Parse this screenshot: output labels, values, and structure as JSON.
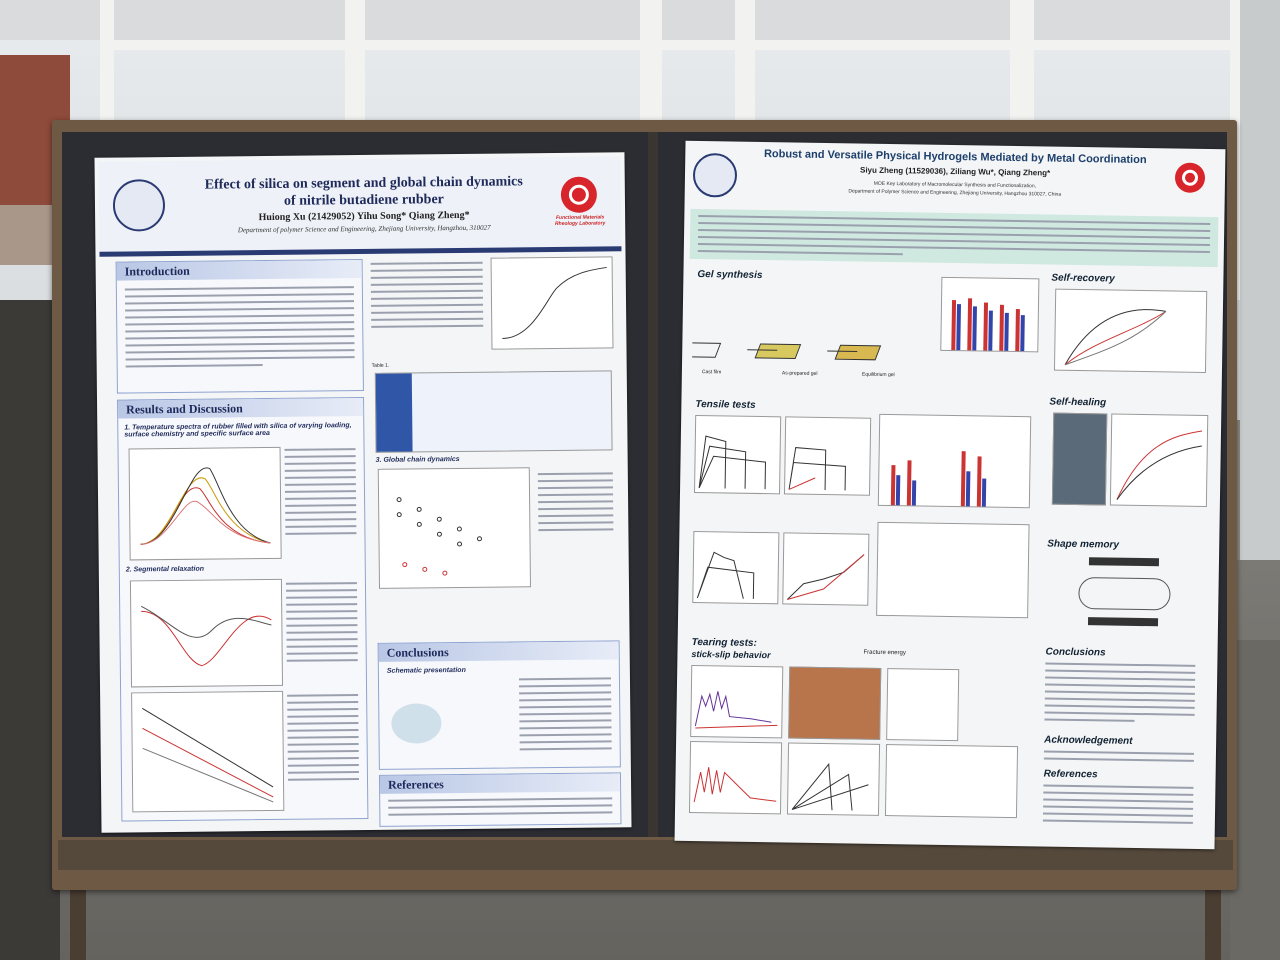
{
  "left_poster": {
    "title_line1": "Effect of silica on segment and global chain dynamics",
    "title_line2": "of nitrile butadiene rubber",
    "authors": "Huiong Xu (21429052)   Yihu Song*   Qiang Zheng*",
    "affiliation": "Department of polymer Science and Engineering, Zhejiang University, Hangzhou, 310027",
    "lab_name": "Functional Materials Rheology Laboratory",
    "introduction_heading": "Introduction",
    "results_heading": "Results and Discussion",
    "subsection1": "1. Temperature spectra of rubber filled with silica of varying loading, surface chemistry and specific surface area",
    "subsection2": "2. Segmental relaxation",
    "global_heading": "3. Global chain dynamics",
    "conclusions_heading": "Conclusions",
    "schematic_label": "Schematic presentation",
    "references_heading": "References",
    "table_label": "Table 1."
  },
  "right_poster": {
    "title": "Robust and Versatile Physical Hydrogels Mediated by Metal Coordination",
    "authors": "Siyu Zheng (11529036), Ziliang Wu*, Qiang Zheng*",
    "affiliation1": "MOE Key Laboratory of Macromolecular Synthesis and Functionalization,",
    "affiliation2": "Department of Polymer Science and Engineering, Zhejiang University, Hangzhou 310027, China",
    "gel_synthesis": "Gel synthesis",
    "self_recovery": "Self-recovery",
    "tensile_tests": "Tensile tests",
    "self_healing": "Self-healing",
    "shape_memory": "Shape memory",
    "tearing_tests": "Tearing tests:",
    "stick_slip": "stick-slip behavior",
    "conclusions": "Conclusions",
    "acknowledgement": "Acknowledgement",
    "references": "References",
    "cast_film": "Cast film",
    "as_prepared": "As-prepared gel",
    "equilibrium": "Equilibrium gel",
    "fracture_energy": "Fracture energy"
  },
  "colors": {
    "board": "#2b2d33",
    "frame": "#6e5a44",
    "left_header": "#1e2a5a",
    "abstract_bg": "#cfe9e0"
  }
}
